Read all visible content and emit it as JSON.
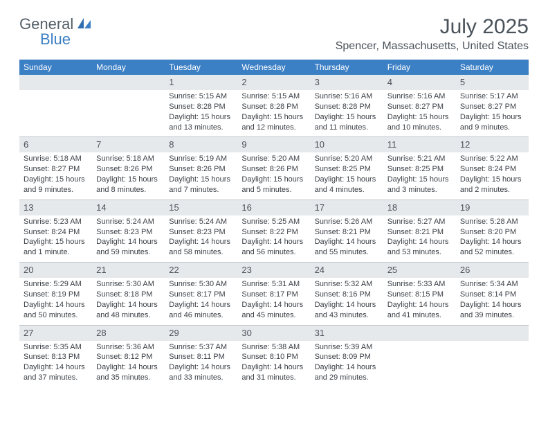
{
  "logo": {
    "text1": "General",
    "text2": "Blue"
  },
  "title": "July 2025",
  "location": "Spencer, Massachusetts, United States",
  "colors": {
    "header_bg": "#3b7fc4",
    "header_text": "#ffffff",
    "daynum_bg": "#e6e9ec",
    "text": "#4a525a",
    "body_text": "#3a3f45",
    "divider": "#c0c6cc",
    "background": "#ffffff"
  },
  "typography": {
    "title_fontsize": 30,
    "location_fontsize": 16,
    "weekday_fontsize": 12,
    "daynum_fontsize": 13,
    "body_fontsize": 11
  },
  "weekdays": [
    "Sunday",
    "Monday",
    "Tuesday",
    "Wednesday",
    "Thursday",
    "Friday",
    "Saturday"
  ],
  "weeks": [
    [
      {
        "num": "",
        "sunrise": "",
        "sunset": "",
        "daylight": ""
      },
      {
        "num": "",
        "sunrise": "",
        "sunset": "",
        "daylight": ""
      },
      {
        "num": "1",
        "sunrise": "Sunrise: 5:15 AM",
        "sunset": "Sunset: 8:28 PM",
        "daylight": "Daylight: 15 hours and 13 minutes."
      },
      {
        "num": "2",
        "sunrise": "Sunrise: 5:15 AM",
        "sunset": "Sunset: 8:28 PM",
        "daylight": "Daylight: 15 hours and 12 minutes."
      },
      {
        "num": "3",
        "sunrise": "Sunrise: 5:16 AM",
        "sunset": "Sunset: 8:28 PM",
        "daylight": "Daylight: 15 hours and 11 minutes."
      },
      {
        "num": "4",
        "sunrise": "Sunrise: 5:16 AM",
        "sunset": "Sunset: 8:27 PM",
        "daylight": "Daylight: 15 hours and 10 minutes."
      },
      {
        "num": "5",
        "sunrise": "Sunrise: 5:17 AM",
        "sunset": "Sunset: 8:27 PM",
        "daylight": "Daylight: 15 hours and 9 minutes."
      }
    ],
    [
      {
        "num": "6",
        "sunrise": "Sunrise: 5:18 AM",
        "sunset": "Sunset: 8:27 PM",
        "daylight": "Daylight: 15 hours and 9 minutes."
      },
      {
        "num": "7",
        "sunrise": "Sunrise: 5:18 AM",
        "sunset": "Sunset: 8:26 PM",
        "daylight": "Daylight: 15 hours and 8 minutes."
      },
      {
        "num": "8",
        "sunrise": "Sunrise: 5:19 AM",
        "sunset": "Sunset: 8:26 PM",
        "daylight": "Daylight: 15 hours and 7 minutes."
      },
      {
        "num": "9",
        "sunrise": "Sunrise: 5:20 AM",
        "sunset": "Sunset: 8:26 PM",
        "daylight": "Daylight: 15 hours and 5 minutes."
      },
      {
        "num": "10",
        "sunrise": "Sunrise: 5:20 AM",
        "sunset": "Sunset: 8:25 PM",
        "daylight": "Daylight: 15 hours and 4 minutes."
      },
      {
        "num": "11",
        "sunrise": "Sunrise: 5:21 AM",
        "sunset": "Sunset: 8:25 PM",
        "daylight": "Daylight: 15 hours and 3 minutes."
      },
      {
        "num": "12",
        "sunrise": "Sunrise: 5:22 AM",
        "sunset": "Sunset: 8:24 PM",
        "daylight": "Daylight: 15 hours and 2 minutes."
      }
    ],
    [
      {
        "num": "13",
        "sunrise": "Sunrise: 5:23 AM",
        "sunset": "Sunset: 8:24 PM",
        "daylight": "Daylight: 15 hours and 1 minute."
      },
      {
        "num": "14",
        "sunrise": "Sunrise: 5:24 AM",
        "sunset": "Sunset: 8:23 PM",
        "daylight": "Daylight: 14 hours and 59 minutes."
      },
      {
        "num": "15",
        "sunrise": "Sunrise: 5:24 AM",
        "sunset": "Sunset: 8:23 PM",
        "daylight": "Daylight: 14 hours and 58 minutes."
      },
      {
        "num": "16",
        "sunrise": "Sunrise: 5:25 AM",
        "sunset": "Sunset: 8:22 PM",
        "daylight": "Daylight: 14 hours and 56 minutes."
      },
      {
        "num": "17",
        "sunrise": "Sunrise: 5:26 AM",
        "sunset": "Sunset: 8:21 PM",
        "daylight": "Daylight: 14 hours and 55 minutes."
      },
      {
        "num": "18",
        "sunrise": "Sunrise: 5:27 AM",
        "sunset": "Sunset: 8:21 PM",
        "daylight": "Daylight: 14 hours and 53 minutes."
      },
      {
        "num": "19",
        "sunrise": "Sunrise: 5:28 AM",
        "sunset": "Sunset: 8:20 PM",
        "daylight": "Daylight: 14 hours and 52 minutes."
      }
    ],
    [
      {
        "num": "20",
        "sunrise": "Sunrise: 5:29 AM",
        "sunset": "Sunset: 8:19 PM",
        "daylight": "Daylight: 14 hours and 50 minutes."
      },
      {
        "num": "21",
        "sunrise": "Sunrise: 5:30 AM",
        "sunset": "Sunset: 8:18 PM",
        "daylight": "Daylight: 14 hours and 48 minutes."
      },
      {
        "num": "22",
        "sunrise": "Sunrise: 5:30 AM",
        "sunset": "Sunset: 8:17 PM",
        "daylight": "Daylight: 14 hours and 46 minutes."
      },
      {
        "num": "23",
        "sunrise": "Sunrise: 5:31 AM",
        "sunset": "Sunset: 8:17 PM",
        "daylight": "Daylight: 14 hours and 45 minutes."
      },
      {
        "num": "24",
        "sunrise": "Sunrise: 5:32 AM",
        "sunset": "Sunset: 8:16 PM",
        "daylight": "Daylight: 14 hours and 43 minutes."
      },
      {
        "num": "25",
        "sunrise": "Sunrise: 5:33 AM",
        "sunset": "Sunset: 8:15 PM",
        "daylight": "Daylight: 14 hours and 41 minutes."
      },
      {
        "num": "26",
        "sunrise": "Sunrise: 5:34 AM",
        "sunset": "Sunset: 8:14 PM",
        "daylight": "Daylight: 14 hours and 39 minutes."
      }
    ],
    [
      {
        "num": "27",
        "sunrise": "Sunrise: 5:35 AM",
        "sunset": "Sunset: 8:13 PM",
        "daylight": "Daylight: 14 hours and 37 minutes."
      },
      {
        "num": "28",
        "sunrise": "Sunrise: 5:36 AM",
        "sunset": "Sunset: 8:12 PM",
        "daylight": "Daylight: 14 hours and 35 minutes."
      },
      {
        "num": "29",
        "sunrise": "Sunrise: 5:37 AM",
        "sunset": "Sunset: 8:11 PM",
        "daylight": "Daylight: 14 hours and 33 minutes."
      },
      {
        "num": "30",
        "sunrise": "Sunrise: 5:38 AM",
        "sunset": "Sunset: 8:10 PM",
        "daylight": "Daylight: 14 hours and 31 minutes."
      },
      {
        "num": "31",
        "sunrise": "Sunrise: 5:39 AM",
        "sunset": "Sunset: 8:09 PM",
        "daylight": "Daylight: 14 hours and 29 minutes."
      },
      {
        "num": "",
        "sunrise": "",
        "sunset": "",
        "daylight": ""
      },
      {
        "num": "",
        "sunrise": "",
        "sunset": "",
        "daylight": ""
      }
    ]
  ]
}
